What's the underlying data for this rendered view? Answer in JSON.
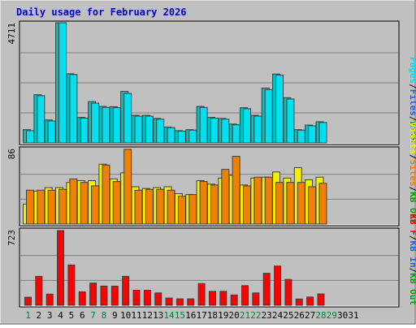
{
  "title": "Daily usage for February 2026",
  "days": [
    "1",
    "2",
    "3",
    "4",
    "5",
    "6",
    "7",
    "8",
    "9",
    "10",
    "11",
    "12",
    "13",
    "14",
    "15",
    "16",
    "17",
    "18",
    "19",
    "20",
    "21",
    "22",
    "23",
    "24",
    "25",
    "26",
    "27",
    "28",
    "29",
    "30",
    "31"
  ],
  "weekend_days": [
    1,
    7,
    8,
    14,
    15,
    21,
    22,
    28,
    29
  ],
  "colors": {
    "background": "#c0c0c0",
    "title": "#0000cc",
    "weekend_label": "#008040",
    "weekday_label": "#000000",
    "hits": "#00c0c0",
    "files": "#00e0f0",
    "visits": "#f0f000",
    "sites": "#f08000",
    "kbin": "#2060e0",
    "kbout": "#00a000",
    "kbf": "#ff0000"
  },
  "chart_data": [
    {
      "type": "bar",
      "name": "top",
      "max_label": "4711",
      "ylim": [
        0,
        4711
      ],
      "legend": [
        "Pages",
        "Files",
        "Hits"
      ],
      "series": [
        {
          "name": "Hits",
          "values": [
            520,
            1890,
            900,
            4711,
            2710,
            1000,
            1620,
            1430,
            1420,
            2020,
            1080,
            1080,
            960,
            620,
            480,
            520,
            1430,
            1000,
            960,
            740,
            1380,
            1080,
            2150,
            2700,
            1770,
            520,
            700,
            830,
            0,
            0,
            0
          ]
        },
        {
          "name": "Files",
          "values": [
            480,
            1850,
            860,
            4711,
            2680,
            970,
            1560,
            1390,
            1380,
            1940,
            1050,
            1050,
            930,
            600,
            460,
            500,
            1390,
            970,
            930,
            710,
            1340,
            1050,
            2090,
            2660,
            1720,
            500,
            670,
            800,
            0,
            0,
            0
          ]
        }
      ]
    },
    {
      "type": "bar",
      "name": "middle",
      "max_label": "86",
      "ylim": [
        0,
        86
      ],
      "legend": [
        "Visits",
        "Sites",
        "KB Out"
      ],
      "series": [
        {
          "name": "Visits",
          "values": [
            23,
            38,
            42,
            42,
            48,
            50,
            50,
            69,
            52,
            59,
            43,
            41,
            42,
            43,
            35,
            34,
            50,
            46,
            53,
            56,
            45,
            53,
            54,
            60,
            53,
            65,
            51,
            54,
            0,
            0,
            0
          ]
        },
        {
          "name": "Sites",
          "values": [
            39,
            39,
            39,
            40,
            52,
            48,
            44,
            68,
            49,
            86,
            39,
            40,
            40,
            39,
            32,
            34,
            49,
            45,
            63,
            78,
            44,
            54,
            54,
            48,
            48,
            48,
            43,
            47,
            0,
            0,
            0
          ]
        }
      ]
    },
    {
      "type": "bar",
      "name": "bottom",
      "max_label": "723",
      "ylim": [
        0,
        723
      ],
      "legend": [
        "KB F",
        "KB In",
        "KB Out"
      ],
      "series": [
        {
          "name": "KB F",
          "values": [
            78,
            280,
            108,
            723,
            390,
            130,
            215,
            185,
            185,
            280,
            145,
            145,
            120,
            70,
            62,
            62,
            210,
            135,
            135,
            100,
            190,
            120,
            310,
            380,
            250,
            60,
            80,
            110,
            0,
            0,
            0
          ]
        }
      ]
    }
  ]
}
